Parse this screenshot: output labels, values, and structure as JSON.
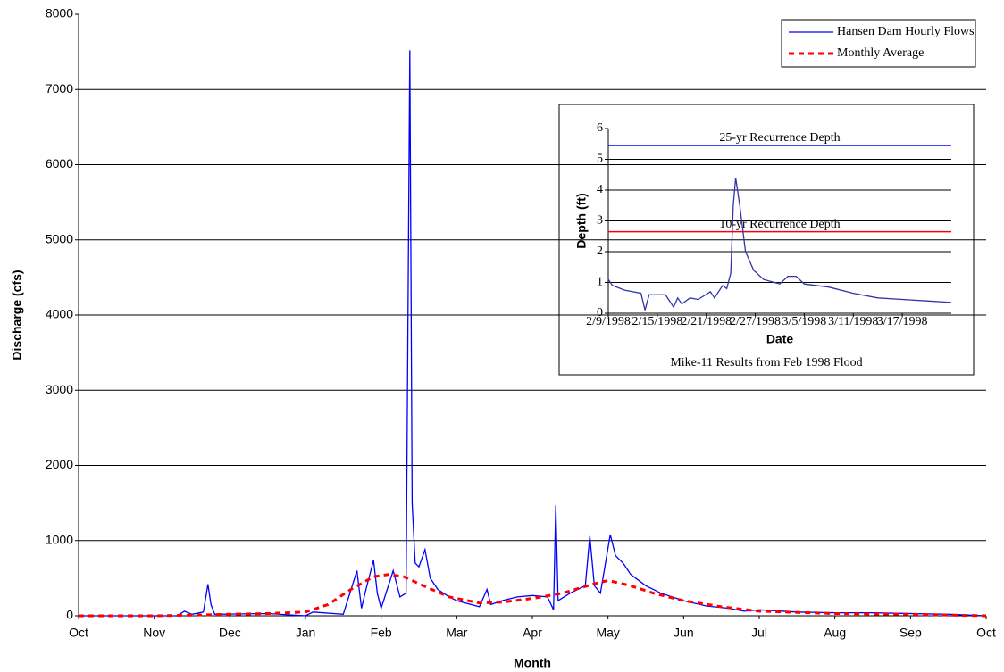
{
  "chart_data": [
    {
      "type": "line",
      "x_label": "Month",
      "y_label": "Discharge (cfs)",
      "xlim": [
        0,
        12
      ],
      "ylim": [
        0,
        8000
      ],
      "xticks": [
        {
          "value": 0,
          "label": "Oct"
        },
        {
          "value": 1,
          "label": "Nov"
        },
        {
          "value": 2,
          "label": "Dec"
        },
        {
          "value": 3,
          "label": "Jan"
        },
        {
          "value": 4,
          "label": "Feb"
        },
        {
          "value": 5,
          "label": "Mar"
        },
        {
          "value": 6,
          "label": "Apr"
        },
        {
          "value": 7,
          "label": "May"
        },
        {
          "value": 8,
          "label": "Jun"
        },
        {
          "value": 9,
          "label": "Jul"
        },
        {
          "value": 10,
          "label": "Aug"
        },
        {
          "value": 11,
          "label": "Sep"
        },
        {
          "value": 12,
          "label": "Oct"
        }
      ],
      "yticks": [
        0,
        1000,
        2000,
        3000,
        4000,
        5000,
        6000,
        7000,
        8000
      ],
      "grid": true,
      "legend": "upper right",
      "series": [
        {
          "name": "Hansen Dam Hourly Flows",
          "color": "#0000ff",
          "style": "solid",
          "x": [
            0,
            1,
            1.3,
            1.4,
            1.5,
            1.65,
            1.71,
            1.75,
            1.8,
            2.5,
            3,
            3.1,
            3.5,
            3.68,
            3.74,
            3.8,
            3.9,
            3.95,
            4,
            4.16,
            4.25,
            4.33,
            4.38,
            4.41,
            4.45,
            4.5,
            4.58,
            4.65,
            4.75,
            4.9,
            5,
            5.3,
            5.4,
            5.45,
            5.6,
            5.8,
            6,
            6.2,
            6.28,
            6.31,
            6.34,
            6.5,
            6.7,
            6.76,
            6.82,
            6.9,
            7.03,
            7.1,
            7.2,
            7.3,
            7.5,
            7.7,
            8,
            8.3,
            8.6,
            8.8,
            9,
            9.5,
            10,
            10.5,
            11,
            11.5,
            12
          ],
          "values": [
            0,
            0,
            0,
            60,
            20,
            50,
            420,
            150,
            20,
            30,
            0,
            50,
            20,
            600,
            100,
            350,
            740,
            300,
            100,
            600,
            250,
            300,
            7520,
            1500,
            700,
            650,
            880,
            500,
            350,
            250,
            200,
            120,
            350,
            150,
            200,
            250,
            270,
            250,
            80,
            1470,
            200,
            300,
            400,
            1060,
            400,
            300,
            1080,
            800,
            700,
            550,
            400,
            300,
            200,
            130,
            100,
            60,
            80,
            50,
            40,
            40,
            30,
            20,
            0
          ]
        },
        {
          "name": "Monthly Average",
          "color": "#ff0000",
          "style": "dashed",
          "x": [
            0,
            1,
            1.5,
            2,
            2.5,
            3,
            3.3,
            3.6,
            3.9,
            4.1,
            4.3,
            4.6,
            4.9,
            5.3,
            5.6,
            6,
            6.4,
            6.8,
            7,
            7.3,
            7.6,
            8,
            8.5,
            9,
            10,
            11,
            12
          ],
          "values": [
            0,
            0,
            10,
            20,
            30,
            50,
            150,
            350,
            520,
            550,
            520,
            380,
            250,
            170,
            180,
            230,
            300,
            420,
            470,
            400,
            300,
            200,
            120,
            60,
            30,
            20,
            0
          ]
        }
      ]
    },
    {
      "type": "line",
      "caption": "Mike-11 Results from Feb 1998 Flood",
      "x_label": "Date",
      "y_label": "Depth (ft)",
      "xlim": [
        0,
        42
      ],
      "ylim": [
        0,
        6
      ],
      "xticks": [
        {
          "value": 0,
          "label": "2/9/1998"
        },
        {
          "value": 6,
          "label": "2/15/1998"
        },
        {
          "value": 12,
          "label": "2/21/1998"
        },
        {
          "value": 18,
          "label": "2/27/1998"
        },
        {
          "value": 24,
          "label": "3/5/1998"
        },
        {
          "value": 30,
          "label": "3/11/1998"
        },
        {
          "value": 36,
          "label": "3/17/1998"
        }
      ],
      "yticks": [
        0,
        1,
        2,
        3,
        4,
        5,
        6
      ],
      "grid": true,
      "reference_lines": [
        {
          "value": 5.45,
          "label": "25-yr Recurrence Depth",
          "color": "#0000ff"
        },
        {
          "value": 2.65,
          "label": "10-yr Recurrence Depth",
          "color": "#ff0000"
        }
      ],
      "series": [
        {
          "color": "#3333aa",
          "style": "solid",
          "x": [
            0,
            0.5,
            2,
            4,
            4.5,
            5,
            7,
            8,
            8.5,
            9,
            10,
            11,
            12.5,
            13,
            14,
            14.5,
            15,
            15.3,
            15.6,
            16.1,
            16.8,
            17.8,
            19,
            21,
            22,
            23,
            24,
            27,
            30,
            33,
            36,
            39,
            42
          ],
          "values": [
            1.1,
            0.9,
            0.75,
            0.65,
            0.1,
            0.6,
            0.6,
            0.2,
            0.5,
            0.3,
            0.5,
            0.45,
            0.7,
            0.5,
            0.9,
            0.8,
            1.3,
            3.5,
            4.4,
            3.5,
            2.0,
            1.4,
            1.1,
            0.95,
            1.2,
            1.2,
            0.95,
            0.85,
            0.65,
            0.5,
            0.45,
            0.4,
            0.35
          ]
        }
      ]
    }
  ]
}
